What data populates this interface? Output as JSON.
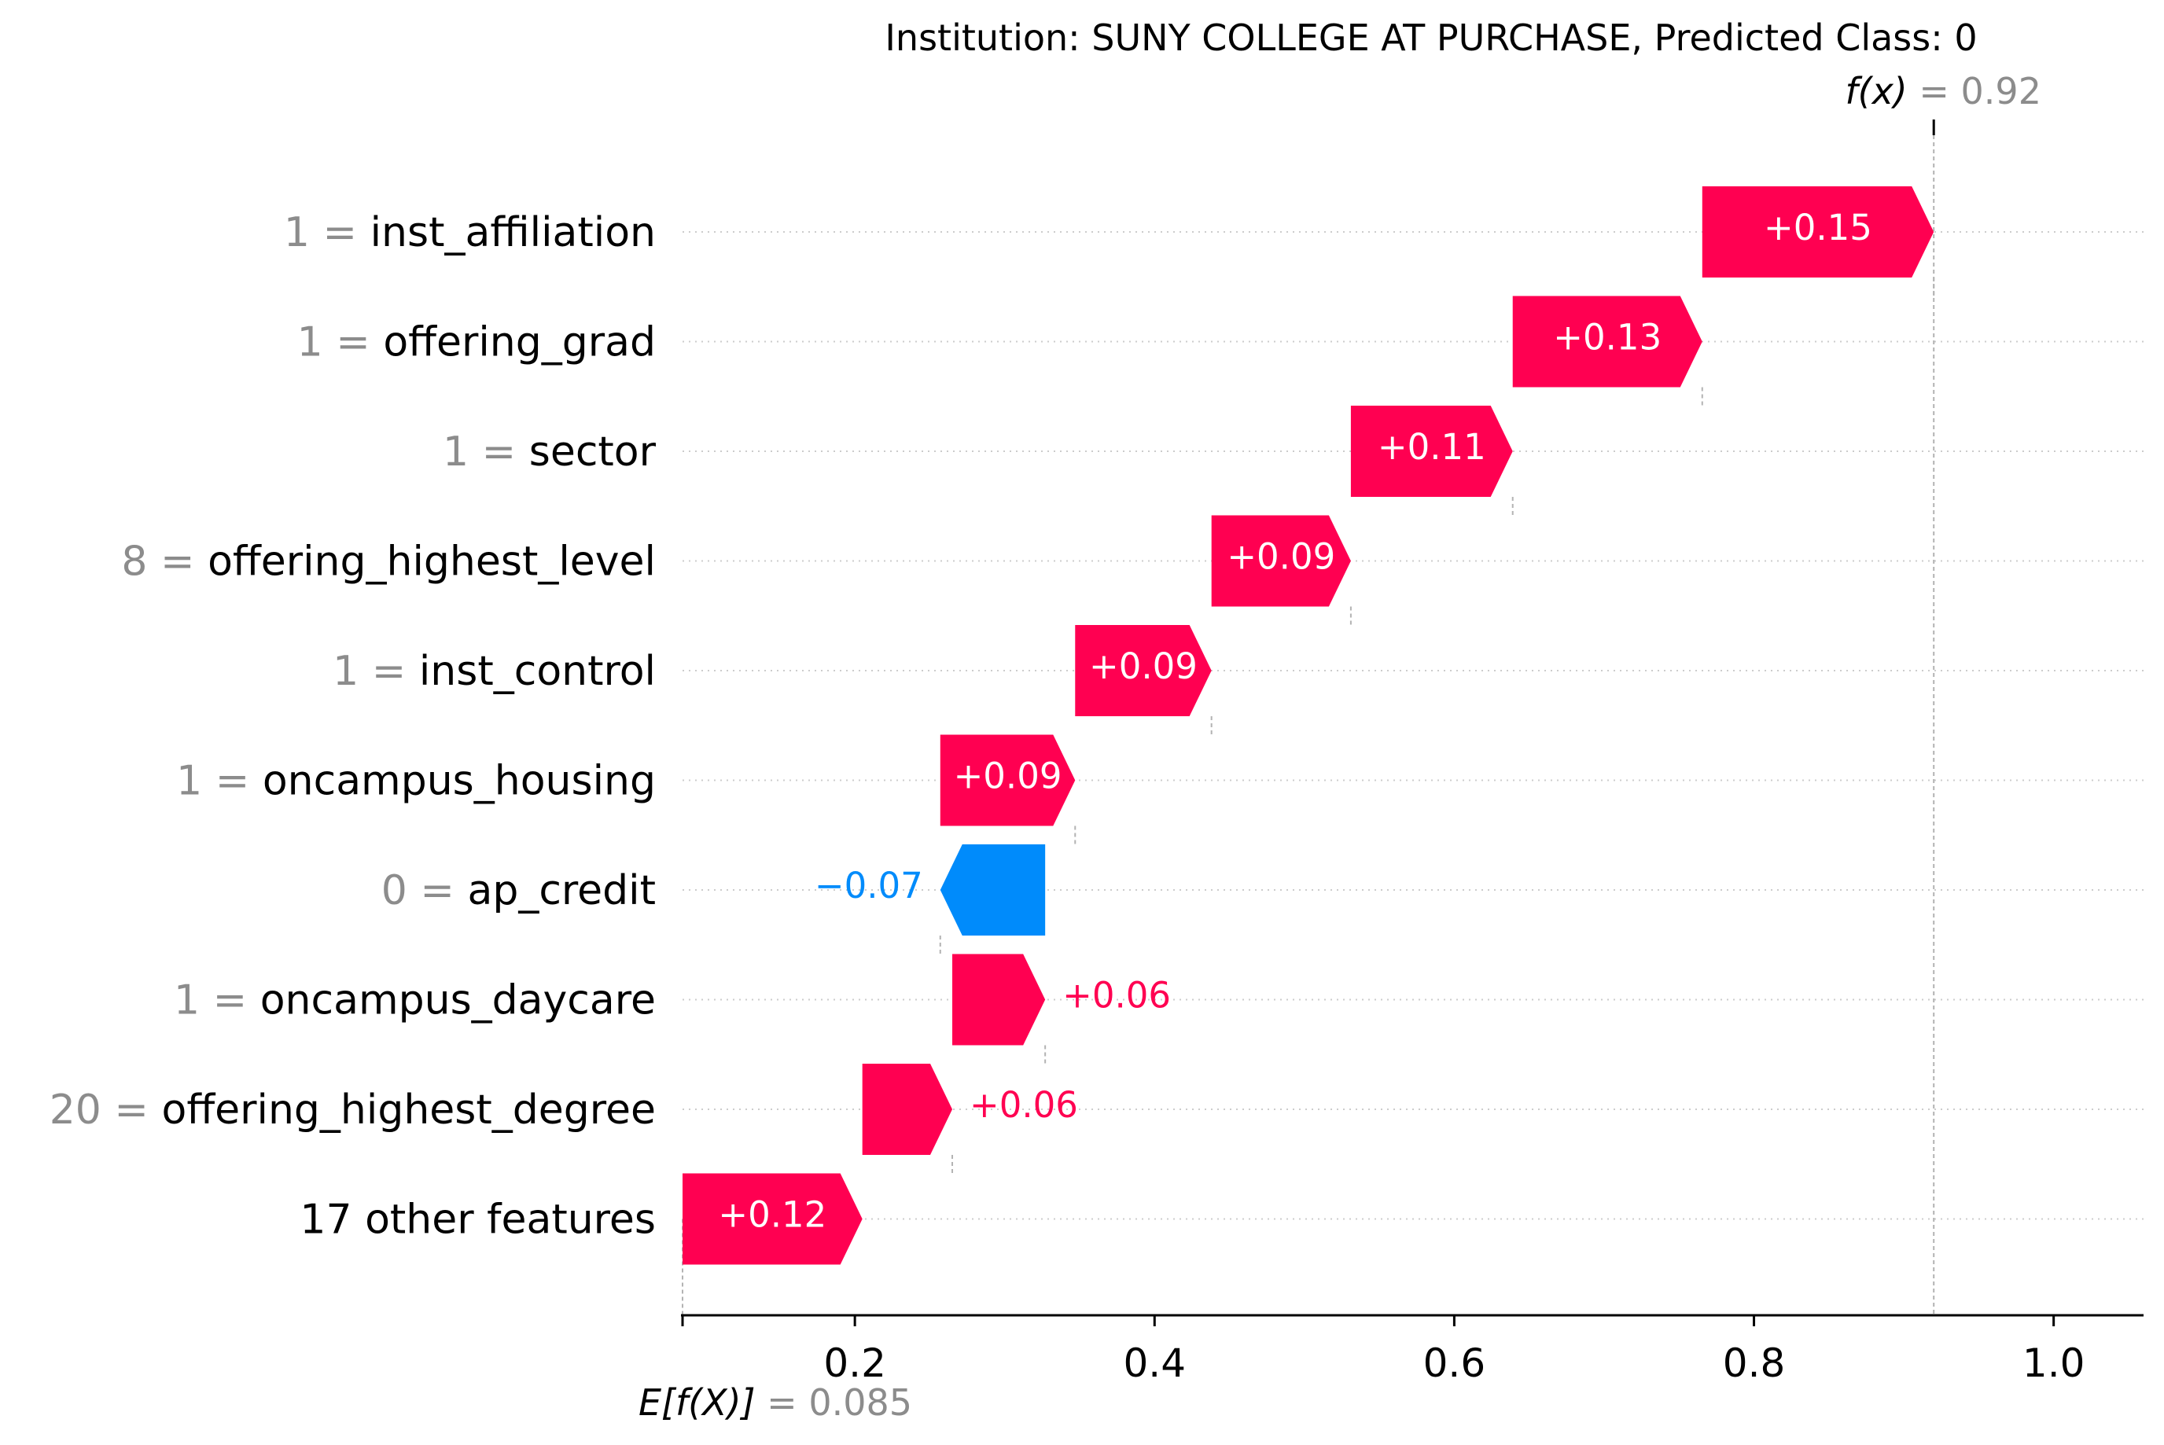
{
  "chart_data": {
    "type": "bar",
    "title": "Institution: SUNY COLLEGE AT PURCHASE, Predicted Class: 0",
    "base_value": 0.085,
    "base_label_math": "E[f(X)]",
    "base_value_text": "= 0.085",
    "output_value": 0.92,
    "output_label_math": "f(x)",
    "output_value_text": "= 0.92",
    "xlim": [
      0.085,
      1.06
    ],
    "xticks": [
      0.2,
      0.4,
      0.6,
      0.8,
      1.0
    ],
    "xtick_labels": [
      "0.2",
      "0.4",
      "0.6",
      "0.8",
      "1.0"
    ],
    "grid": "horizontal dotted",
    "colors": {
      "positive": "#ff0051",
      "negative": "#008bfb",
      "value_gray": "#8c8c8c",
      "guide": "#b3b3b3"
    },
    "features": [
      {
        "value": "1",
        "name": "inst_affiliation",
        "start": 0.7655,
        "shap": 0.1545,
        "label": "+0.15"
      },
      {
        "value": "1",
        "name": "offering_grad",
        "start": 0.639,
        "shap": 0.1265,
        "label": "+0.13"
      },
      {
        "value": "1",
        "name": "sector",
        "start": 0.531,
        "shap": 0.108,
        "label": "+0.11"
      },
      {
        "value": "8",
        "name": "offering_highest_level",
        "start": 0.438,
        "shap": 0.093,
        "label": "+0.09"
      },
      {
        "value": "1",
        "name": "inst_control",
        "start": 0.347,
        "shap": 0.091,
        "label": "+0.09"
      },
      {
        "value": "1",
        "name": "oncampus_housing",
        "start": 0.257,
        "shap": 0.09,
        "label": "+0.09"
      },
      {
        "value": "0",
        "name": "ap_credit",
        "start": 0.327,
        "shap": -0.07,
        "label": "−0.07"
      },
      {
        "value": "1",
        "name": "oncampus_daycare",
        "start": 0.265,
        "shap": 0.062,
        "label": "+0.06"
      },
      {
        "value": "20",
        "name": "offering_highest_degree",
        "start": 0.205,
        "shap": 0.06,
        "label": "+0.06"
      },
      {
        "value": "",
        "name": "17 other features",
        "start": 0.085,
        "shap": 0.12,
        "label": "+0.12"
      }
    ]
  }
}
